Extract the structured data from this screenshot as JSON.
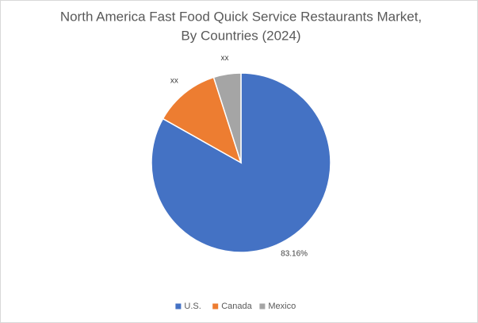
{
  "chart_data": {
    "type": "pie",
    "title": [
      "North America Fast Food Quick Service Restaurants Market,",
      "By Countries (2024)"
    ],
    "categories": [
      "U.S.",
      "Canada",
      "Mexico"
    ],
    "values": [
      83.16,
      11.9,
      4.94
    ],
    "value_labels": [
      "83.16%",
      "xx",
      "xx"
    ],
    "colors": [
      "#4472c4",
      "#ed7d31",
      "#a5a5a5"
    ],
    "legend": "bottom"
  }
}
